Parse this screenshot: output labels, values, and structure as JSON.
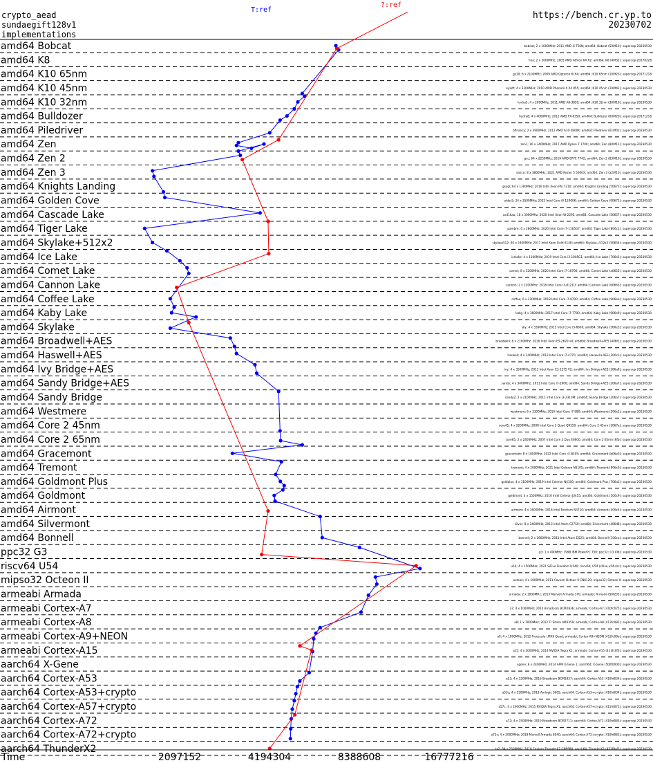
{
  "header": {
    "line1": "crypto_aead",
    "line2": "sundaegift128v1",
    "line3": "implementations",
    "site": "https://bench.cr.yp.to",
    "date": "20230702",
    "series_blue_label": "T:ref",
    "series_red_label": "?:ref"
  },
  "colors": {
    "blue": "#0000ff",
    "red": "#ff0000",
    "text": "#000000"
  },
  "chart_data": {
    "type": "line",
    "x_axis_label": "Time",
    "x_scale": "log2",
    "x_ticks": [
      2097152,
      4194304,
      8388608,
      16777216
    ],
    "categories": [
      "amd64 Bobcat",
      "amd64 K8",
      "amd64 K10 65nm",
      "amd64 K10 45nm",
      "amd64 K10 32nm",
      "amd64 Bulldozer",
      "amd64 Piledriver",
      "amd64 Zen",
      "amd64 Zen 2",
      "amd64 Zen 3",
      "amd64 Knights Landing",
      "amd64 Golden Cove",
      "amd64 Cascade Lake",
      "amd64 Tiger Lake",
      "amd64 Skylake+512x2",
      "amd64 Ice Lake",
      "amd64 Comet Lake",
      "amd64 Cannon Lake",
      "amd64 Coffee Lake",
      "amd64 Kaby Lake",
      "amd64 Skylake",
      "amd64 Broadwell+AES",
      "amd64 Haswell+AES",
      "amd64 Ivy Bridge+AES",
      "amd64 Sandy Bridge+AES",
      "amd64 Sandy Bridge",
      "amd64 Westmere",
      "amd64 Core 2 45nm",
      "amd64 Core 2 65nm",
      "amd64 Gracemont",
      "amd64 Tremont",
      "amd64 Goldmont Plus",
      "amd64 Goldmont",
      "amd64 Airmont",
      "amd64 Silvermont",
      "amd64 Bonnell",
      "ppc32 G3",
      "riscv64 U54",
      "mipso32 Octeon II",
      "armeabi Armada",
      "armeabi Cortex-A7",
      "armeabi Cortex-A8",
      "armeabi Cortex-A9+NEON",
      "armeabi Cortex-A15",
      "aarch64 X-Gene",
      "aarch64 Cortex-A53",
      "aarch64 Cortex-A53+crypto",
      "aarch64 Cortex-A57+crypto",
      "aarch64 Cortex-A72",
      "aarch64 Cortex-A72+crypto",
      "aarch64 ThunderX2"
    ],
    "series": [
      {
        "name": "T:ref",
        "color": "#0000ff",
        "points": [
          {
            "x": 7000000,
            "row": 0
          },
          {
            "x": 7150000,
            "row": 0.3
          },
          {
            "x": 5400000,
            "row": 3.4
          },
          {
            "x": 5500000,
            "row": 3.6
          },
          {
            "x": 5220000,
            "row": 4.0
          },
          {
            "x": 5080000,
            "row": 4.5
          },
          {
            "x": 4800000,
            "row": 5.0
          },
          {
            "x": 4550000,
            "row": 5.3
          },
          {
            "x": 4200000,
            "row": 6.2
          },
          {
            "x": 3300000,
            "row": 6.9
          },
          {
            "x": 3250000,
            "row": 7.1
          },
          {
            "x": 3650000,
            "row": 7.3
          },
          {
            "x": 4020000,
            "row": 7.0
          },
          {
            "x": 3300000,
            "row": 7.5
          },
          {
            "x": 3350000,
            "row": 7.8
          },
          {
            "x": 1700000,
            "row": 8.9
          },
          {
            "x": 1720000,
            "row": 9.3
          },
          {
            "x": 1850000,
            "row": 10.4
          },
          {
            "x": 1870000,
            "row": 10.8
          },
          {
            "x": 3900000,
            "row": 11.9
          },
          {
            "x": 1600000,
            "row": 13.0
          },
          {
            "x": 1700000,
            "row": 14.0
          },
          {
            "x": 1900000,
            "row": 14.6
          },
          {
            "x": 2100000,
            "row": 15.3
          },
          {
            "x": 2220000,
            "row": 15.8
          },
          {
            "x": 2250000,
            "row": 16.2
          },
          {
            "x": 1950000,
            "row": 18.0
          },
          {
            "x": 2010000,
            "row": 18.6
          },
          {
            "x": 1970000,
            "row": 19.0
          },
          {
            "x": 2380000,
            "row": 19.3
          },
          {
            "x": 1950000,
            "row": 20.1
          },
          {
            "x": 3100000,
            "row": 20.8
          },
          {
            "x": 3200000,
            "row": 21.4
          },
          {
            "x": 3250000,
            "row": 21.9
          },
          {
            "x": 3750000,
            "row": 22.7
          },
          {
            "x": 3800000,
            "row": 23.3
          },
          {
            "x": 4500000,
            "row": 24.6
          },
          {
            "x": 4550000,
            "row": 27.4
          },
          {
            "x": 4570000,
            "row": 28.1
          },
          {
            "x": 5400000,
            "row": 28.4
          },
          {
            "x": 3150000,
            "row": 29.0
          },
          {
            "x": 4600000,
            "row": 29.6
          },
          {
            "x": 4400000,
            "row": 30.5
          },
          {
            "x": 4560000,
            "row": 31.0
          },
          {
            "x": 4700000,
            "row": 31.3
          },
          {
            "x": 4650000,
            "row": 31.6
          },
          {
            "x": 4350000,
            "row": 32.0
          },
          {
            "x": 4380000,
            "row": 32.4
          },
          {
            "x": 6200000,
            "row": 33.5
          },
          {
            "x": 6300000,
            "row": 35.0
          },
          {
            "x": 8400000,
            "row": 35.7
          },
          {
            "x": 13400000,
            "row": 37.2
          },
          {
            "x": 9500000,
            "row": 37.8
          },
          {
            "x": 9600000,
            "row": 38.3
          },
          {
            "x": 9000000,
            "row": 39.1
          },
          {
            "x": 8500000,
            "row": 40.3
          },
          {
            "x": 6200000,
            "row": 41.4
          },
          {
            "x": 6000000,
            "row": 41.8
          },
          {
            "x": 5900000,
            "row": 42.2
          },
          {
            "x": 5850000,
            "row": 43.1
          },
          {
            "x": 5700000,
            "row": 44.6
          },
          {
            "x": 5300000,
            "row": 45.2
          },
          {
            "x": 5200000,
            "row": 45.6
          },
          {
            "x": 5140000,
            "row": 46.1
          },
          {
            "x": 5080000,
            "row": 46.6
          },
          {
            "x": 5000000,
            "row": 47.2
          },
          {
            "x": 4960000,
            "row": 47.9
          },
          {
            "x": 4940000,
            "row": 48.6
          },
          {
            "x": 4930000,
            "row": 49.3
          }
        ]
      },
      {
        "name": "?:ref",
        "color": "#ff0000",
        "points": [
          {
            "x": 12200000,
            "row": -2.4
          },
          {
            "x": 7050000,
            "row": 0.2
          },
          {
            "x": 4500000,
            "row": 6.7
          },
          {
            "x": 3400000,
            "row": 8.1
          },
          {
            "x": 4150000,
            "row": 12.5
          },
          {
            "x": 4170000,
            "row": 14.8
          },
          {
            "x": 2050000,
            "row": 17.2
          },
          {
            "x": 2250000,
            "row": 19.7
          },
          {
            "x": 4150000,
            "row": 33.1
          },
          {
            "x": 3950000,
            "row": 36.2
          },
          {
            "x": 13000000,
            "row": 37.0
          },
          {
            "x": 5300000,
            "row": 42.7
          },
          {
            "x": 5800000,
            "row": 43.0
          },
          {
            "x": 5100000,
            "row": 47.6
          },
          {
            "x": 4200000,
            "row": 50.0
          }
        ]
      }
    ]
  },
  "row_annotations": [
    "bobcat; 2 x 1000MHz; 2011 AMD G-T56N; amd64; Bobcat (500f10); supercop-20230530",
    "hiss; 2 x 2000MHz; 2005 AMD Athlon 64 X2; amd64; K8 (40f32); supercop-20170228",
    "gs10; 6 x 2100MHz; 2009 AMD Opteron 6164; amd64; K10 65nm (100f23); supercop-20171218",
    "kyloft; 4 x 3200MHz; 2010 AMD Phenom II X4 955; amd64; K10 45nm (100f42); supercop-20230530",
    "hydra5; 4 x 2900MHz; 2011 AMD A8-3850; amd64; K10 32nm (300f10); supercop-20230530",
    "hydra8; 4 x 4000MHz; 2012 AMD FX-8350; amd64; Bulldozer (600f20); supercop-20171218",
    "bfinancy; 2 x 3900MHz; 2012 AMD A10-5800K; amd64; Piledriver (610f01); supercop-20230530",
    "zen1; 16 x 3400MHz; 2017 AMD Ryzen 7 1700; amd64; Zen (800f11); supercop-20230530",
    "gcc; 64 x 2250MHz; 2019 AMD EPYC 7742; amd64; Zen 2 (830f10); supercop-20230530",
    "sanco; 8 x 3800MHz; 2021 AMD Ryzen 5 5600X; amd64; Zen 3 (a20f10); supercop-20230530",
    "gsagl; 64 x 1300MHz; 2016 Intel Xeon Phi 7210; amd64; Knights Landing (50671); supercop-20230530",
    "alder2; 24 x 3500MHz; 2022 Intel Core i9-12900K; amd64; Golden Cove (90672); supercop-20230530",
    "cxd1kaa; 18 x 3000MHz; 2020 Intel Xeon W-2295; amd64; Cascade Lake (50657); supercop-20230530",
    "pambre; 4 x 2800MHz; 2020 Intel Core i7-1165G7; amd64; Tiger Lake (806c1); supercop-20230530",
    "skylake512; 40 x 2400MHz; 2017 Intel Xeon Gold 6148; amd64; Skylake+512x2 (50654); supercop-20230530",
    "icelake; 4 x 1100MHz; 2019 Intel Core i3-1005G1; amd64; Ice Lake (706e5); supercop-20230530",
    "comet; 8 x 3200MHz; 2020 Intel Core i7-10700; amd64; Comet Lake (a0655); supercop-20230530",
    "cannon; 2 x 2200MHz; 2018 Intel Core i3-8121U; amd64; Cannon Lake (60663); supercop-20230530",
    "coffee; 6 x 3200MHz; 2018 Intel Core i7-8700; amd64; Coffee Lake (906ea); supercop-20230530",
    "kaby; 4 x 3600MHz; 2017 Intel Core i7-7700; amd64; Kaby Lake (906e9); supercop-20230530",
    "sky; 4 x 3300MHz; 2015 Intel Core i5-6600; amd64; Skylake (506e3); supercop-20230530",
    "broadwell; 8 x 2100MHz; 2016 Intel Xeon E5-2620 v4; amd64; Broadwell+AES (406f1); supercop-20230530",
    "haswell; 4 x 3400MHz; 2013 Intel Core i7-4770; amd64; Haswell+AES (306c3); supercop-20230530",
    "ivy; 4 x 3500MHz; 2013 Intel Xeon E3-1275 V2; amd64; Ivy Bridge+AES (306a9); supercop-20230530",
    "sandy; 4 x 3400MHz; 2011 Intel Core i7-2600; amd64; Sandy Bridge+AES (206a7); supercop-20230530",
    "sandy2; 2 x 2100MHz; 2011 Intel Core i3-2310M; amd64; Sandy Bridge (206a7); supercop-20230530",
    "westmere; 6 x 3300MHz; 2010 Intel Core i7-980; amd64; Westmere (206c2); supercop-20230530",
    "core45; 4 x 2830MHz; 2008 Intel Core 2 Quad Q9550; amd64; Core 2 45nm (1067a); supercop-20230530",
    "core65; 2 x 2400MHz; 2007 Intel Core 2 Duo E6600; amd64; Core 2 65nm (6fb); supercop-20230530",
    "gracemont; 8 x 1800MHz; 2022 Intel Core i3-N305; amd64; Gracemont (b06e0); supercop-20230530",
    "tremont; 4 x 2000MHz; 2021 Intel Celeron N5105; amd64; Tremont (906c0); supercop-20230530",
    "goldplus; 4 x 1100MHz; 2019 Intel Celeron N4100; amd64; Goldmont Plus (706a1); supercop-20230530",
    "goldmont; 4 x 1500MHz; 2016 Intel Celeron J3455; amd64; Goldmont (506c9); supercop-20230530",
    "airmont; 4 x 1600MHz; 2016 Intel Pentium N3710; amd64; Airmont (406c4); supercop-20230530",
    "silver; 8 x 2400MHz; 2013 Intel Atom C2750; amd64; Silvermont (406d8); supercop-20230530",
    "bonnell; 2 x 1660MHz; 2011 Intel Atom D525; amd64; Bonnell (106ca); supercop-20230530",
    "g3; 1 x 400MHz; 1998 IBM PowerPC 750; ppc32; G3 (08); supercop-20230530",
    "u54; 4 x 1500MHz; 2021 SiFive Freedom U540; riscv64; U54 (sifive,u54-mc); supercop-20230530",
    "octeon; 4 x 1000MHz; 2011 Cavium Octeon II CN6120; mipso32; Octeon II; supercop-20230530",
    "armada; 2 x 1000MHz; 2013 Marvell Armada 370; armeabi; Armada (56f201); supercop-20230530",
    "a7; 4 x 1000MHz; 2014 Broadcom BCM2836; armeabi; Cortex-A7 (410fc075); supercop-20230530",
    "a8; 1 x 1000MHz; 2012 TI Sitara AM3359; armeabi; Cortex-A8 (413fc082); supercop-20230530",
    "a9; 4 x 1000MHz; 2012 Freescale i.MX6 Quad; armeabi; Cortex-A9+NEON (412fc09a); supercop-20230530",
    "a15; 4 x 2000MHz; 2014 NVIDIA Tegra K1; armeabi; Cortex-A15 (413fc0f3); supercop-20230530",
    "xgene; 8 x 2400MHz; 2014 APM X-Gene 1; aarch64; X-Gene (500f0000); supercop-20230530",
    "a53; 4 x 1200MHz; 2016 Broadcom BCM2837; aarch64; Cortex-A53 (410fd034); supercop-20230530",
    "a53c; 4 x 1500MHz; 2018 Amlogic S905; aarch64; Cortex-A53+crypto (410fd034); supercop-20230530",
    "a57c; 4 x 1900MHz; 2015 NVIDIA Tegra X1; aarch64; Cortex-A57+crypto (411fd071); supercop-20230530",
    "a72; 4 x 1500MHz; 2019 Broadcom BCM2711; aarch64; Cortex-A72 (410fd083); supercop-20230530",
    "a72c; 4 x 2000MHz; 2018 Marvell Armada 8040; aarch64; Cortex-A72+crypto (410fd081); supercop-20230530",
    "tx2; 64 x 2500MHz; 2018 Cavium ThunderX2 CN9980; aarch64; ThunderX2 (431f0af1); supercop-20230530"
  ]
}
